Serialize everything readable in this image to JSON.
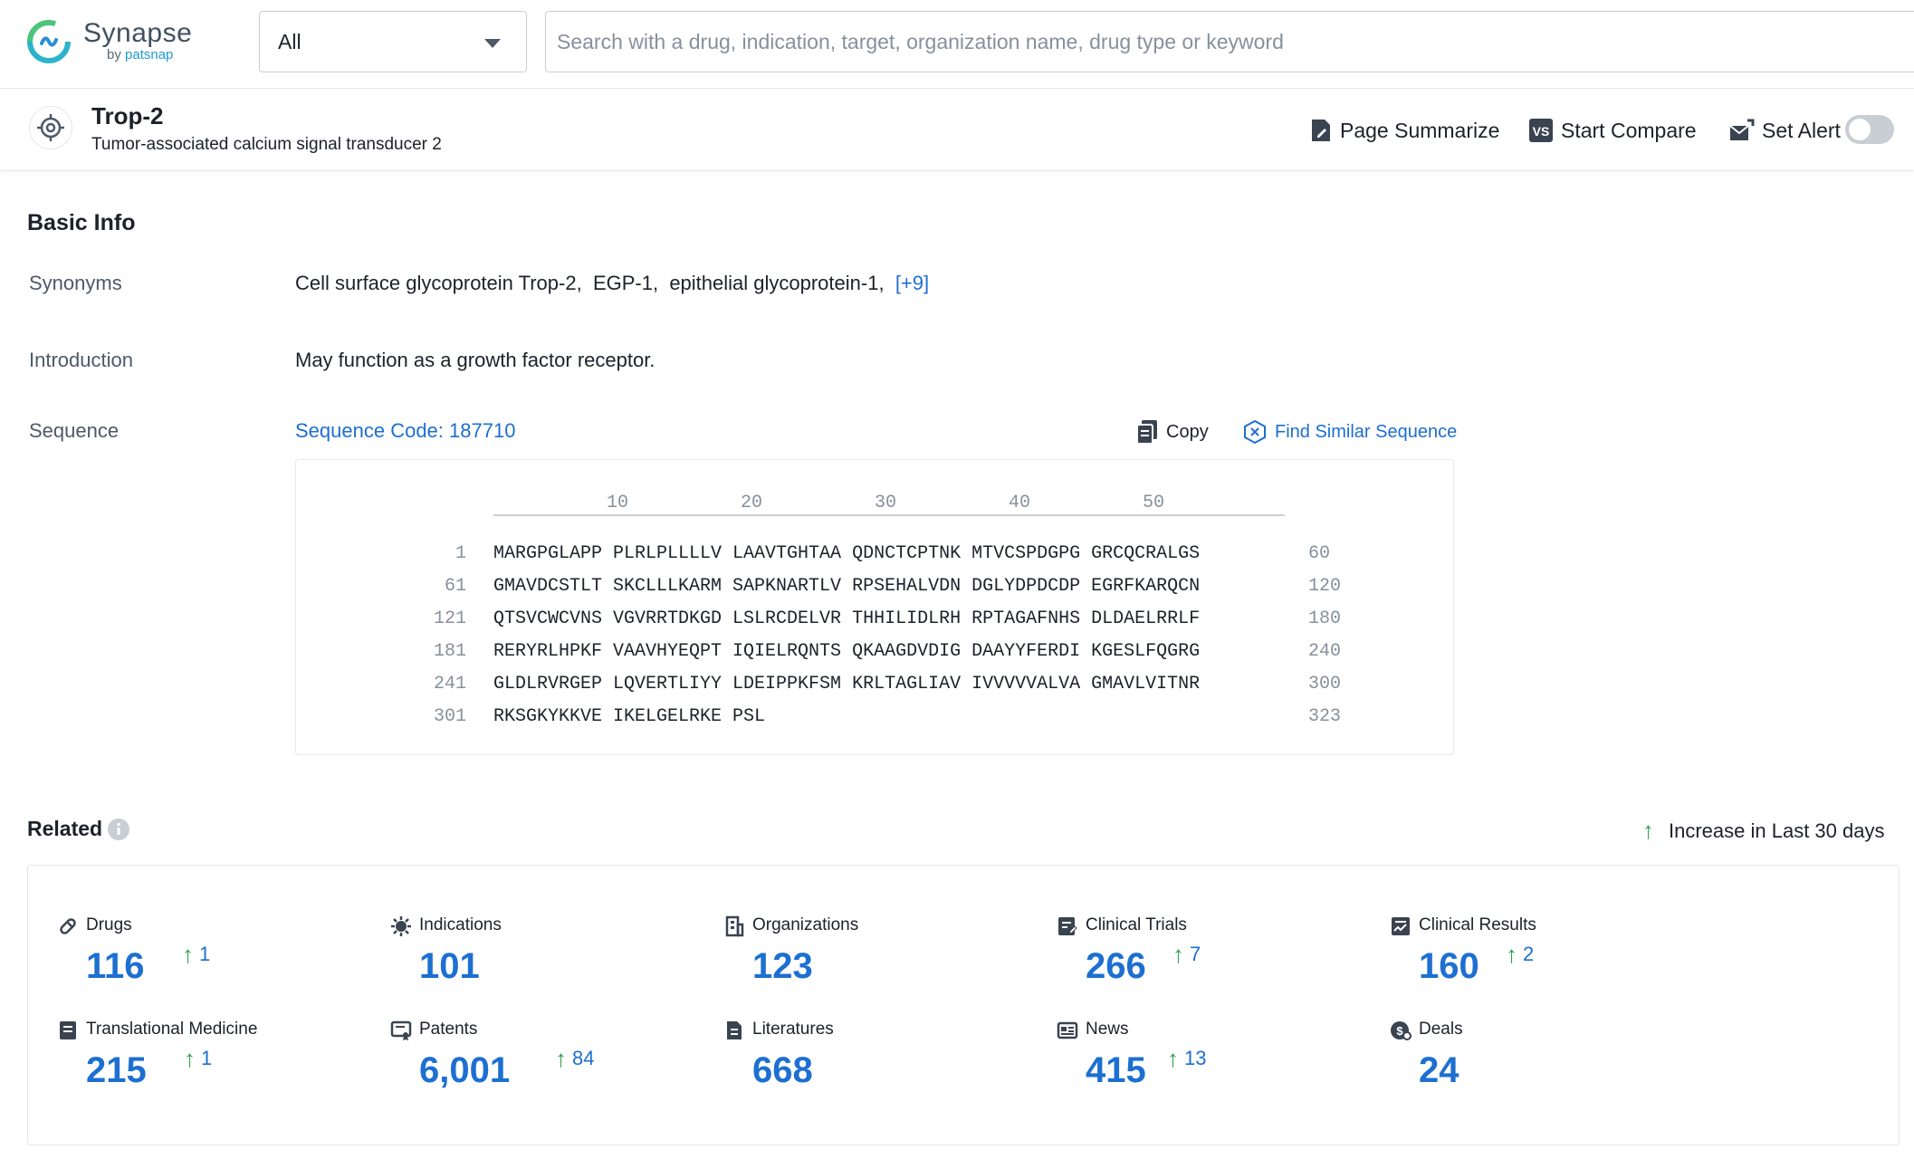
{
  "brand": {
    "name": "Synapse",
    "sub_by": "by",
    "sub_name": "patsnap"
  },
  "search": {
    "scope_value": "All",
    "placeholder": "Search with a drug, indication, target, organization name, drug type or keyword"
  },
  "entity": {
    "title": "Trop-2",
    "subtitle": "Tumor-associated calcium signal transducer 2",
    "actions": {
      "summarize": "Page Summarize",
      "compare": "Start Compare",
      "alert": "Set Alert"
    },
    "alert_enabled": false
  },
  "basic_info": {
    "heading": "Basic Info",
    "synonyms_label": "Synonyms",
    "synonyms": [
      "Cell surface glycoprotein Trop-2,",
      "EGP-1,",
      "epithelial glycoprotein-1,"
    ],
    "synonyms_more": "[+9]",
    "introduction_label": "Introduction",
    "introduction": "May function as a growth factor receptor.",
    "sequence_label": "Sequence",
    "sequence_code": "Sequence Code: 187710",
    "copy_label": "Copy",
    "find_similar_label": "Find Similar Sequence"
  },
  "sequence": {
    "ruler_ticks": [
      "10",
      "20",
      "30",
      "40",
      "50"
    ],
    "rows": [
      {
        "start": "1",
        "residues": "MARGPGLAPP PLRLPLLLLV LAAVTGHTAA QDNCTCPTNK MTVCSPDGPG GRCQCRALGS",
        "end": "60"
      },
      {
        "start": "61",
        "residues": "GMAVDCSTLT SKCLLLKARM SAPKNARTLV RPSEHALVDN DGLYDPDCDP EGRFKARQCN",
        "end": "120"
      },
      {
        "start": "121",
        "residues": "QTSVCWCVNS VGVRRTDKGD LSLRCDELVR THHILIDLRH RPTAGAFNHS DLDAELRRLF",
        "end": "180"
      },
      {
        "start": "181",
        "residues": "RERYRLHPKF VAAVHYEQPT IQIELRQNTS QKAAGDVDIG DAAYYFERDI KGESLFQGRG",
        "end": "240"
      },
      {
        "start": "241",
        "residues": "GLDLRVRGEP LQVERTLIYY LDEIPPKFSM KRLTAGLIAV IVVVVVALVA GMAVLVITNR",
        "end": "300"
      },
      {
        "start": "301",
        "residues": "RKSGKYKKVE IKELGELRKE PSL",
        "end": "323"
      }
    ]
  },
  "related": {
    "heading": "Related",
    "legend": "Increase in Last 30 days",
    "stats": [
      {
        "label": "Drugs",
        "icon": "pill-icon",
        "value": "116",
        "increase": "1"
      },
      {
        "label": "Indications",
        "icon": "virus-icon",
        "value": "101",
        "increase": ""
      },
      {
        "label": "Organizations",
        "icon": "building-icon",
        "value": "123",
        "increase": ""
      },
      {
        "label": "Clinical Trials",
        "icon": "clipboard-icon",
        "value": "266",
        "increase": "7"
      },
      {
        "label": "Clinical Results",
        "icon": "chart-doc-icon",
        "value": "160",
        "increase": "2"
      },
      {
        "label": "Translational Medicine",
        "icon": "document-icon",
        "value": "215",
        "increase": "1"
      },
      {
        "label": "Patents",
        "icon": "certificate-icon",
        "value": "6,001",
        "increase": "84"
      },
      {
        "label": "Literatures",
        "icon": "paper-icon",
        "value": "668",
        "increase": ""
      },
      {
        "label": "News",
        "icon": "newspaper-icon",
        "value": "415",
        "increase": "13"
      },
      {
        "label": "Deals",
        "icon": "handshake-icon",
        "value": "24",
        "increase": ""
      }
    ]
  }
}
